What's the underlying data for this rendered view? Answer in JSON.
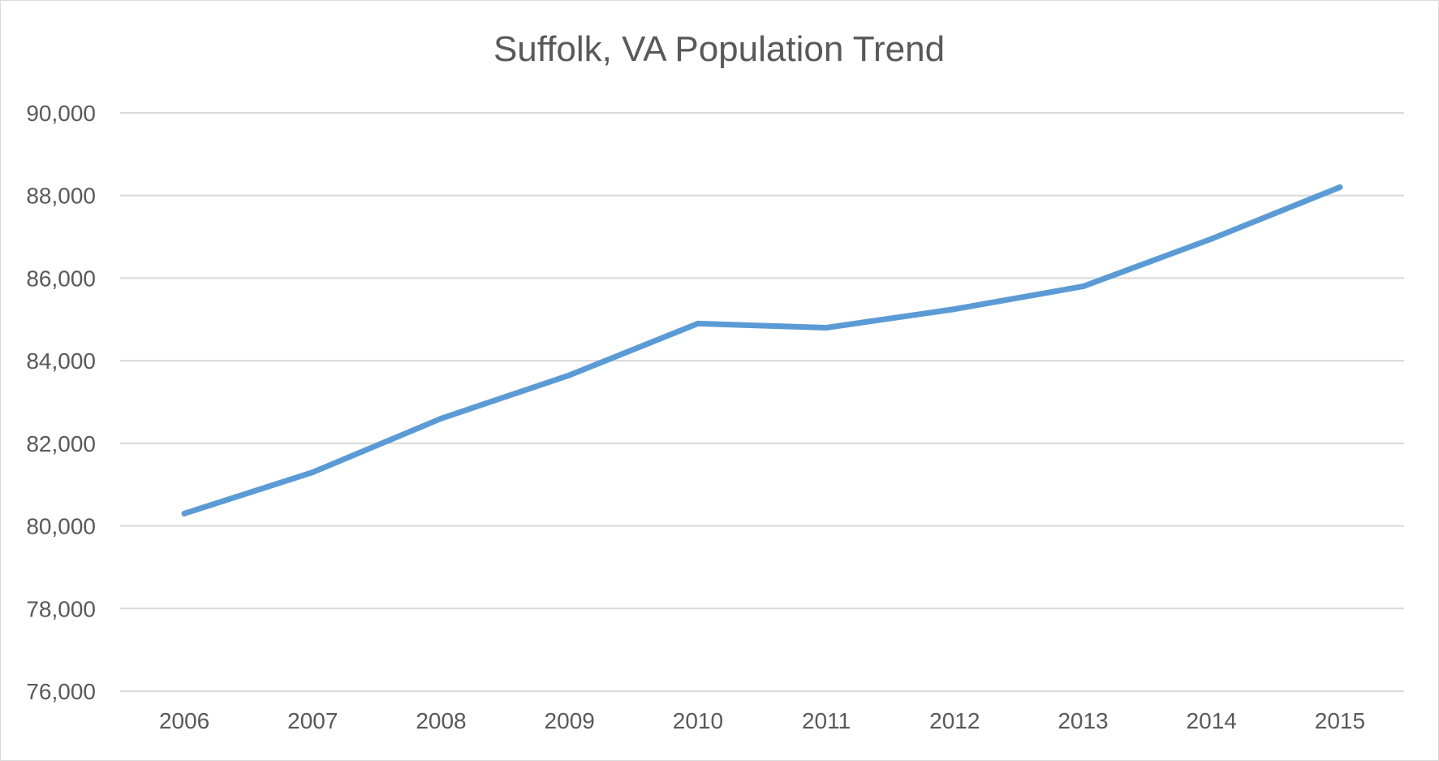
{
  "chart_data": {
    "type": "line",
    "title": "Suffolk, VA Population Trend",
    "xlabel": "",
    "ylabel": "",
    "categories": [
      "2006",
      "2007",
      "2008",
      "2009",
      "2010",
      "2011",
      "2012",
      "2013",
      "2014",
      "2015"
    ],
    "series": [
      {
        "values": [
          80300,
          81300,
          82600,
          83650,
          84900,
          84800,
          85250,
          85800,
          86950,
          88200
        ]
      }
    ],
    "ylim": [
      76000,
      90000
    ],
    "yticks": [
      76000,
      78000,
      80000,
      82000,
      84000,
      86000,
      88000,
      90000
    ],
    "ytick_labels": [
      "76,000",
      "78,000",
      "80,000",
      "82,000",
      "84,000",
      "86,000",
      "88,000",
      "90,000"
    ],
    "grid": true,
    "legend": "none",
    "colors": {
      "line": "#5b9bd5",
      "grid": "#d9d9d9",
      "text": "#595959",
      "border": "#d9d9d9"
    }
  }
}
